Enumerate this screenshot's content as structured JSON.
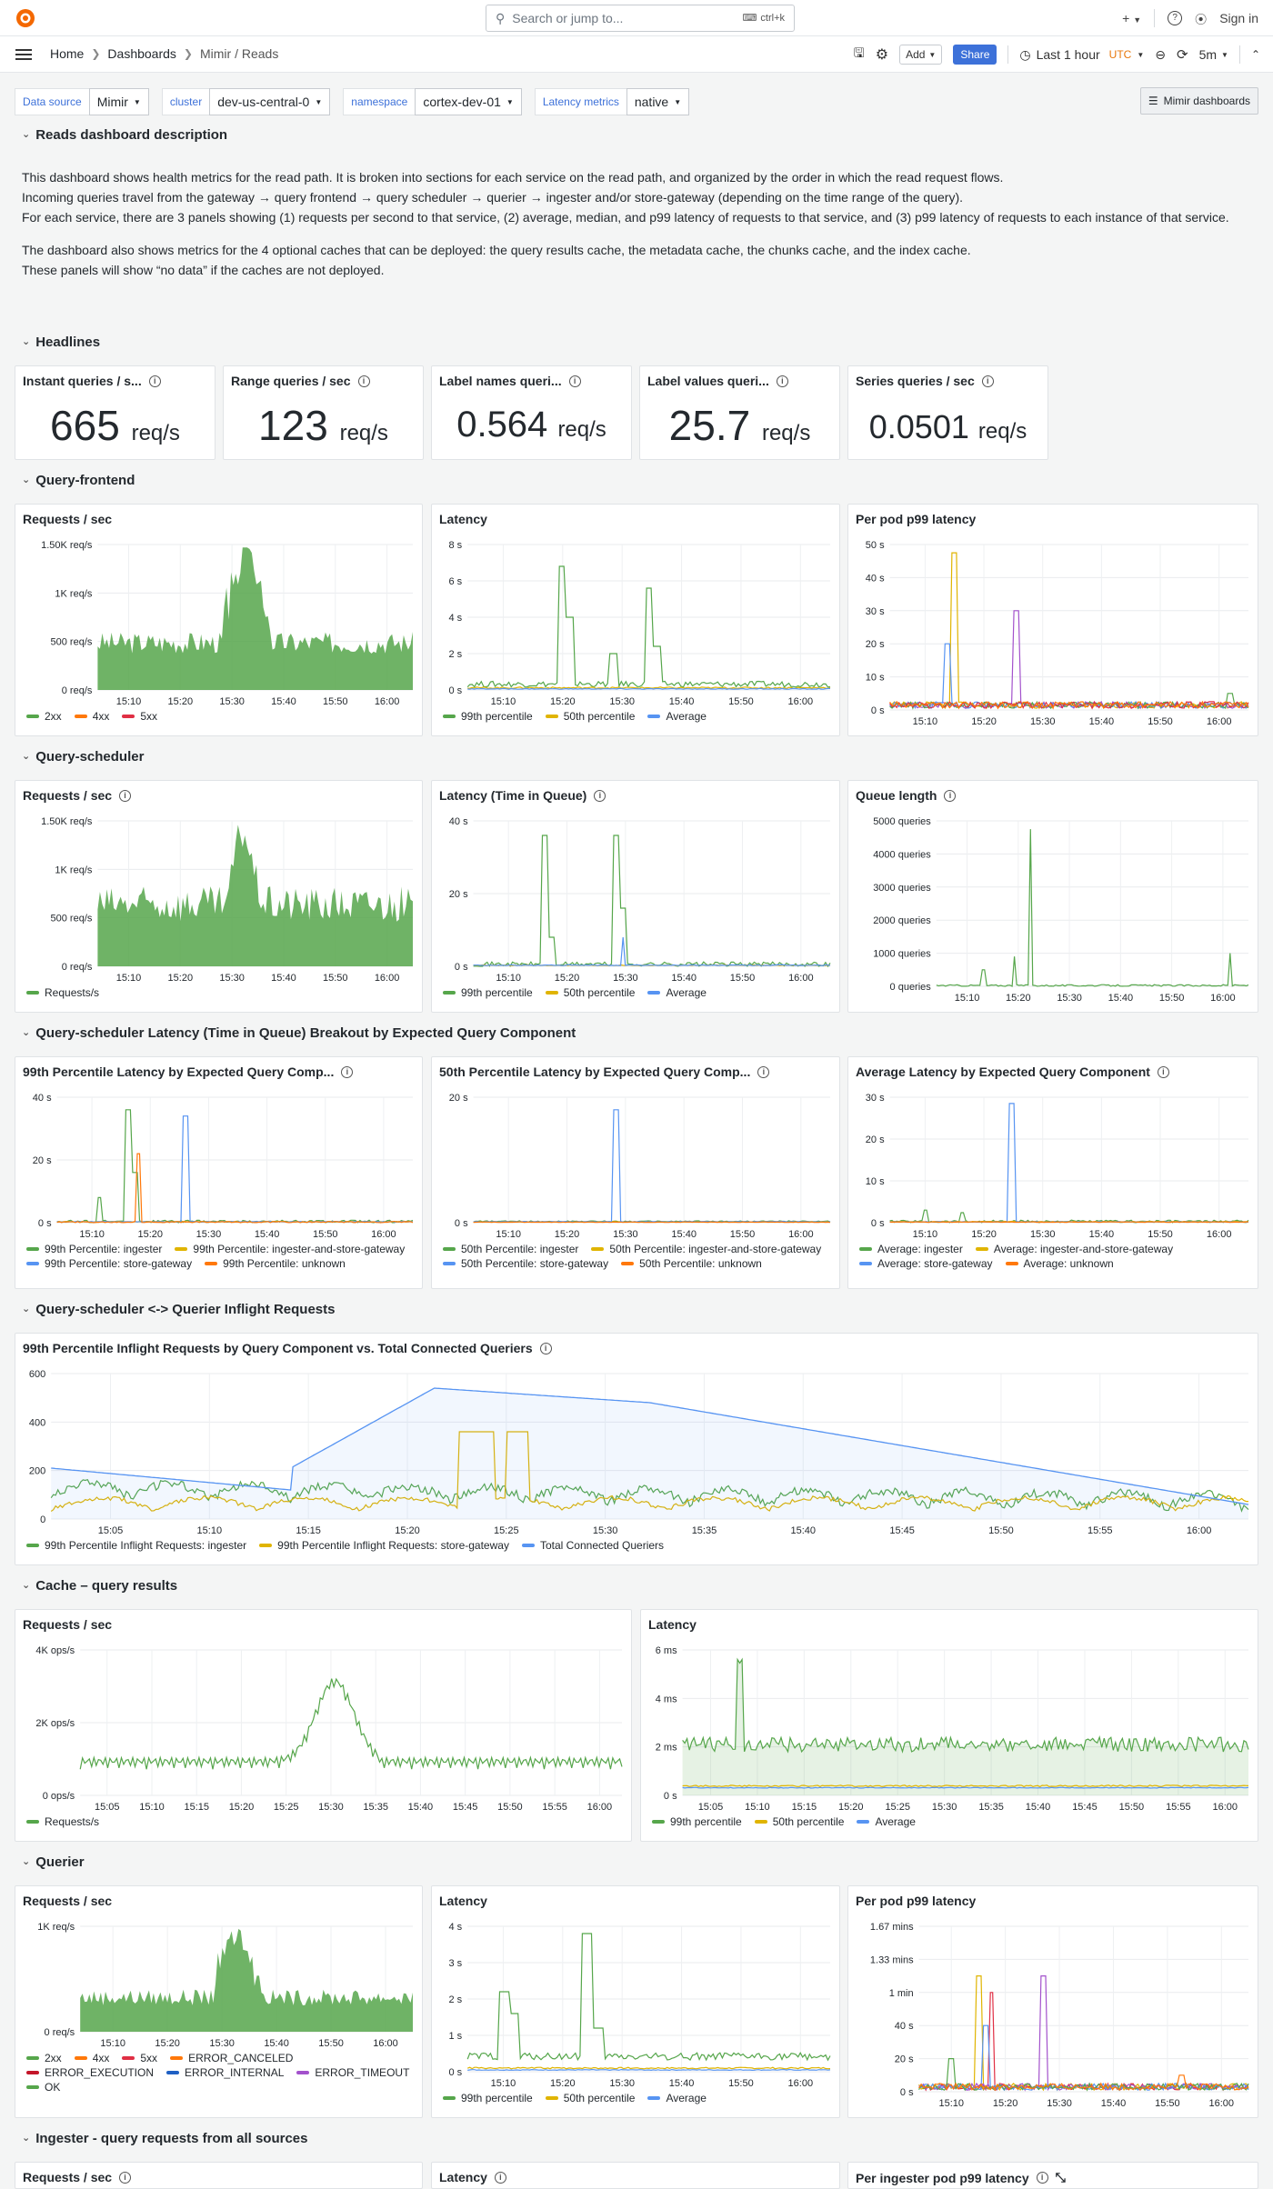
{
  "topbar": {
    "search_placeholder": "Search or jump to...",
    "shortcut": "ctrl+k",
    "sign_in": "Sign in",
    "plus": "+"
  },
  "breadcrumbs": [
    "Home",
    "Dashboards",
    "Mimir / Reads"
  ],
  "toolbar": {
    "add": "Add",
    "share": "Share",
    "time_range": "Last 1 hour",
    "timezone": "UTC",
    "refresh": "5m"
  },
  "variables": [
    {
      "label": "Data source",
      "value": "Mimir"
    },
    {
      "label": "cluster",
      "value": "dev-us-central-0"
    },
    {
      "label": "namespace",
      "value": "cortex-dev-01"
    },
    {
      "label": "Latency metrics",
      "value": "native"
    }
  ],
  "mimir_dashboards": "Mimir dashboards",
  "rows": {
    "description": "Reads dashboard description",
    "headlines": "Headlines",
    "query_frontend": "Query-frontend",
    "query_scheduler": "Query-scheduler",
    "scheduler_breakdown": "Query-scheduler Latency (Time in Queue) Breakout by Expected Query Component",
    "inflight": "Query-scheduler <-> Querier Inflight Requests",
    "cache": "Cache – query results",
    "querier": "Querier",
    "ingester": "Ingester - query requests from all sources"
  },
  "description": {
    "p1": "This dashboard shows health metrics for the read path. It is broken into sections for each service on the read path, and organized by the order in which the read request flows.",
    "p2": "Incoming queries travel from the gateway → query frontend → query scheduler → querier → ingester and/or store-gateway (depending on the time range of the query).",
    "p3": "For each service, there are 3 panels showing (1) requests per second to that service, (2) average, median, and p99 latency of requests to that service, and (3) p99 latency of requests to each instance of that service.",
    "p4": "The dashboard also shows metrics for the 4 optional caches that can be deployed: the query results cache, the metadata cache, the chunks cache, and the index cache.",
    "p5": "These panels will show “no data” if the caches are not deployed."
  },
  "stats": [
    {
      "title": "Instant queries / s...",
      "value": "665",
      "unit": "req/s"
    },
    {
      "title": "Range queries / sec",
      "value": "123",
      "unit": "req/s"
    },
    {
      "title": "Label names queri...",
      "value": "0.564",
      "unit": "req/s"
    },
    {
      "title": "Label values queri...",
      "value": "25.7",
      "unit": "req/s"
    },
    {
      "title": "Series queries / sec",
      "value": "0.0501",
      "unit": "req/s"
    }
  ],
  "panels": {
    "qf_rps": {
      "title": "Requests / sec",
      "yticks": [
        "1.50K req/s",
        "1K req/s",
        "500 req/s",
        "0 req/s"
      ],
      "xticks": [
        "15:10",
        "15:20",
        "15:30",
        "15:40",
        "15:50",
        "16:00"
      ],
      "legend": [
        "2xx",
        "4xx",
        "5xx"
      ]
    },
    "qf_lat": {
      "title": "Latency",
      "yticks": [
        "8 s",
        "6 s",
        "4 s",
        "2 s",
        "0 s"
      ],
      "xticks": [
        "15:10",
        "15:20",
        "15:30",
        "15:40",
        "15:50",
        "16:00"
      ],
      "legend": [
        "99th percentile",
        "50th percentile",
        "Average"
      ]
    },
    "qf_pod": {
      "title": "Per pod p99 latency",
      "yticks": [
        "50 s",
        "40 s",
        "30 s",
        "20 s",
        "10 s",
        "0 s"
      ],
      "xticks": [
        "15:10",
        "15:20",
        "15:30",
        "15:40",
        "15:50",
        "16:00"
      ]
    },
    "qs_rps": {
      "title": "Requests / sec",
      "yticks": [
        "1.50K req/s",
        "1K req/s",
        "500 req/s",
        "0 req/s"
      ],
      "xticks": [
        "15:10",
        "15:20",
        "15:30",
        "15:40",
        "15:50",
        "16:00"
      ],
      "legend": [
        "Requests/s"
      ]
    },
    "qs_lat": {
      "title": "Latency (Time in Queue)",
      "yticks": [
        "40 s",
        "20 s",
        "0 s"
      ],
      "xticks": [
        "15:10",
        "15:20",
        "15:30",
        "15:40",
        "15:50",
        "16:00"
      ],
      "legend": [
        "99th percentile",
        "50th percentile",
        "Average"
      ]
    },
    "qs_queue": {
      "title": "Queue length",
      "yticks": [
        "5000 queries",
        "4000 queries",
        "3000 queries",
        "2000 queries",
        "1000 queries",
        "0 queries"
      ],
      "xticks": [
        "15:10",
        "15:20",
        "15:30",
        "15:40",
        "15:50",
        "16:00"
      ]
    },
    "bd_99": {
      "title": "99th Percentile Latency by Expected Query Comp...",
      "yticks": [
        "40 s",
        "20 s",
        "0 s"
      ],
      "xticks": [
        "15:10",
        "15:20",
        "15:30",
        "15:40",
        "15:50",
        "16:00"
      ],
      "legend": [
        "99th Percentile: ingester",
        "99th Percentile: ingester-and-store-gateway",
        "99th Percentile: store-gateway",
        "99th Percentile: unknown"
      ]
    },
    "bd_50": {
      "title": "50th Percentile Latency by Expected Query Comp...",
      "yticks": [
        "20 s",
        "0 s"
      ],
      "xticks": [
        "15:10",
        "15:20",
        "15:30",
        "15:40",
        "15:50",
        "16:00"
      ],
      "legend": [
        "50th Percentile: ingester",
        "50th Percentile: ingester-and-store-gateway",
        "50th Percentile: store-gateway",
        "50th Percentile: unknown"
      ]
    },
    "bd_avg": {
      "title": "Average Latency by Expected Query Component",
      "yticks": [
        "30 s",
        "20 s",
        "10 s",
        "0 s"
      ],
      "xticks": [
        "15:10",
        "15:20",
        "15:30",
        "15:40",
        "15:50",
        "16:00"
      ],
      "legend": [
        "Average: ingester",
        "Average: ingester-and-store-gateway",
        "Average: store-gateway",
        "Average: unknown"
      ]
    },
    "inflight": {
      "title": "99th Percentile Inflight Requests by Query Component vs. Total Connected Queriers",
      "yticks": [
        "600",
        "400",
        "200",
        "0"
      ],
      "xticks": [
        "15:05",
        "15:10",
        "15:15",
        "15:20",
        "15:25",
        "15:30",
        "15:35",
        "15:40",
        "15:45",
        "15:50",
        "15:55",
        "16:00"
      ],
      "legend": [
        "99th Percentile Inflight Requests: ingester",
        "99th Percentile Inflight Requests: store-gateway",
        "Total Connected Queriers"
      ]
    },
    "cache_rps": {
      "title": "Requests / sec",
      "yticks": [
        "4K ops/s",
        "2K ops/s",
        "0 ops/s"
      ],
      "xticks": [
        "15:05",
        "15:10",
        "15:15",
        "15:20",
        "15:25",
        "15:30",
        "15:35",
        "15:40",
        "15:45",
        "15:50",
        "15:55",
        "16:00"
      ],
      "legend": [
        "Requests/s"
      ]
    },
    "cache_lat": {
      "title": "Latency",
      "yticks": [
        "6 ms",
        "4 ms",
        "2 ms",
        "0 s"
      ],
      "xticks": [
        "15:05",
        "15:10",
        "15:15",
        "15:20",
        "15:25",
        "15:30",
        "15:35",
        "15:40",
        "15:45",
        "15:50",
        "15:55",
        "16:00"
      ],
      "legend": [
        "99th percentile",
        "50th percentile",
        "Average"
      ]
    },
    "q_rps": {
      "title": "Requests / sec",
      "yticks": [
        "1K req/s",
        "0 req/s"
      ],
      "xticks": [
        "15:10",
        "15:20",
        "15:30",
        "15:40",
        "15:50",
        "16:00"
      ],
      "legend": [
        "2xx",
        "4xx",
        "5xx",
        "ERROR_CANCELED",
        "ERROR_EXECUTION",
        "ERROR_INTERNAL",
        "ERROR_TIMEOUT",
        "OK"
      ]
    },
    "q_lat": {
      "title": "Latency",
      "yticks": [
        "4 s",
        "3 s",
        "2 s",
        "1 s",
        "0 s"
      ],
      "xticks": [
        "15:10",
        "15:20",
        "15:30",
        "15:40",
        "15:50",
        "16:00"
      ],
      "legend": [
        "99th percentile",
        "50th percentile",
        "Average"
      ]
    },
    "q_pod": {
      "title": "Per pod p99 latency",
      "yticks": [
        "1.67 mins",
        "1.33 mins",
        "1 min",
        "40 s",
        "20 s",
        "0 s"
      ],
      "xticks": [
        "15:10",
        "15:20",
        "15:30",
        "15:40",
        "15:50",
        "16:00"
      ]
    },
    "ing_rps": {
      "title": "Requests / sec"
    },
    "ing_lat": {
      "title": "Latency"
    },
    "ing_pod": {
      "title": "Per ingester pod p99 latency"
    }
  },
  "colors": {
    "green": "#56a64b",
    "yellow": "#e0b400",
    "blue": "#5794f2",
    "orange": "#ff780a",
    "red": "#e02f44",
    "dark_red": "#c4162a",
    "dark_blue": "#1f60c4",
    "purple": "#a352cc",
    "accent": "#3d71d9"
  }
}
